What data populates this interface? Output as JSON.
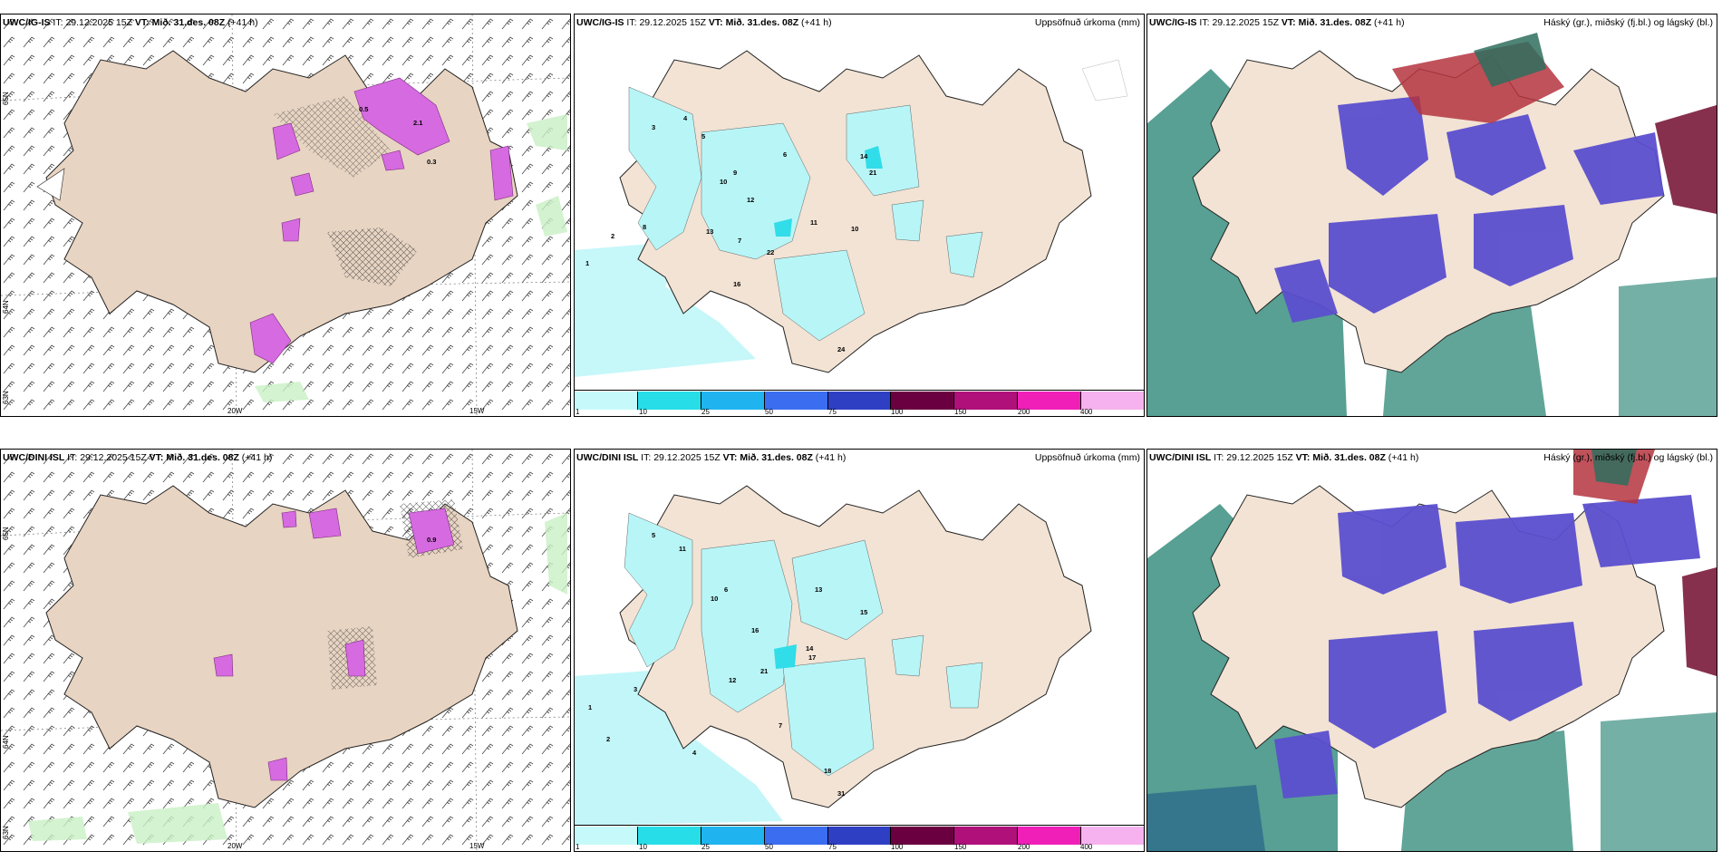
{
  "rows": [
    {
      "model": "UWC/IG-IS",
      "it_label": "IT:",
      "it_value": "29.12.2025 15Z",
      "vt_label": "VT:",
      "vt_value": "Mið. 31.des. 08Z",
      "lead": "(+41 h)",
      "precip_title": "Uppsöfnuð úrkoma (mm)",
      "cloud_title": "Háský (gr.), miðský (fj.bl.) og lágský (bl.)",
      "wind_labels": [
        "0.5",
        "2.1",
        "0.3"
      ],
      "precip_labels": [
        "5",
        "9",
        "6",
        "10",
        "12",
        "21",
        "14",
        "16",
        "10",
        "22",
        "11",
        "4",
        "3",
        "2",
        "1",
        "8",
        "7",
        "13",
        "24"
      ]
    },
    {
      "model": "UWC/DINI ISL",
      "it_label": "IT:",
      "it_value": "29.12.2025 15Z",
      "vt_label": "VT:",
      "vt_value": "Mið. 31.des. 08Z",
      "lead": "(+41 h)",
      "precip_title": "Uppsöfnuð úrkoma (mm)",
      "cloud_title": "Háský (gr.), miðský (fj.bl.) og lágský (bl.)",
      "wind_labels": [
        "0.9"
      ],
      "precip_labels": [
        "5",
        "11",
        "10",
        "16",
        "13",
        "14",
        "17",
        "21",
        "15",
        "12",
        "18",
        "31",
        "6",
        "3",
        "2",
        "1",
        "4",
        "7"
      ]
    }
  ],
  "axes": {
    "lon_20": "20W",
    "lon_15": "15W",
    "lat_65": "65N",
    "lat_64": "64N",
    "lat_63": "63N"
  },
  "colorbar": {
    "ticks": [
      "1",
      "10",
      "25",
      "50",
      "75",
      "100",
      "150",
      "200",
      "400"
    ],
    "colors": [
      "#c6fafa",
      "#27dde8",
      "#1fb4f0",
      "#3a6df0",
      "#2f3fc4",
      "#6a0040",
      "#b0107a",
      "#f01fb8",
      "#f6b2ee"
    ]
  },
  "colors": {
    "land": "#f2e3d4",
    "land_wind": "#e6d2c2",
    "precip_light": "#b8f5f7",
    "precip_mid": "#31dde8",
    "low_cloud": "#5b4fcf",
    "mid_cloud": "#2e8a7a",
    "high_cloud": "#c64050",
    "snow_pink": "#d66ae0"
  }
}
